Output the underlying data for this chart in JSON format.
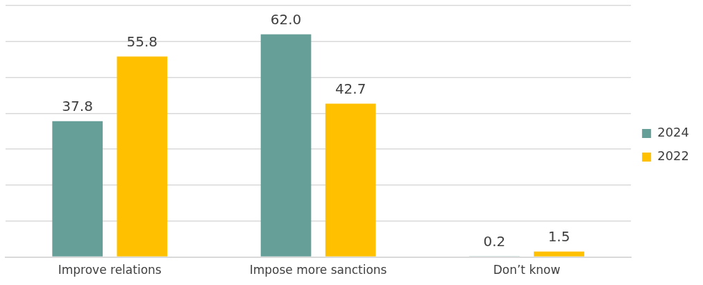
{
  "chart_data": {
    "type": "bar",
    "categories": [
      "Improve relations",
      "Impose more sanctions",
      "Don’t know"
    ],
    "series": [
      {
        "name": "2024",
        "color": "#669e98",
        "values": [
          37.8,
          62.0,
          0.2
        ],
        "value_labels": [
          "37.8",
          "62.0",
          "0.2"
        ]
      },
      {
        "name": "2022",
        "color": "#ffc000",
        "values": [
          55.8,
          42.7,
          1.5
        ],
        "value_labels": [
          "55.8",
          "42.7",
          "1.5"
        ]
      }
    ],
    "ylim": [
      0,
      70
    ],
    "yticks": [
      {
        "value": 0,
        "label": null
      },
      {
        "value": 10,
        "label": null
      },
      {
        "value": 20,
        "label": null
      },
      {
        "value": 30,
        "label": null
      },
      {
        "value": 40,
        "label": null
      },
      {
        "value": 50,
        "label": null
      },
      {
        "value": 60,
        "label": null
      },
      {
        "value": 70,
        "label": null
      }
    ],
    "grid": "y",
    "tick_labels": "x",
    "legend": "right"
  }
}
